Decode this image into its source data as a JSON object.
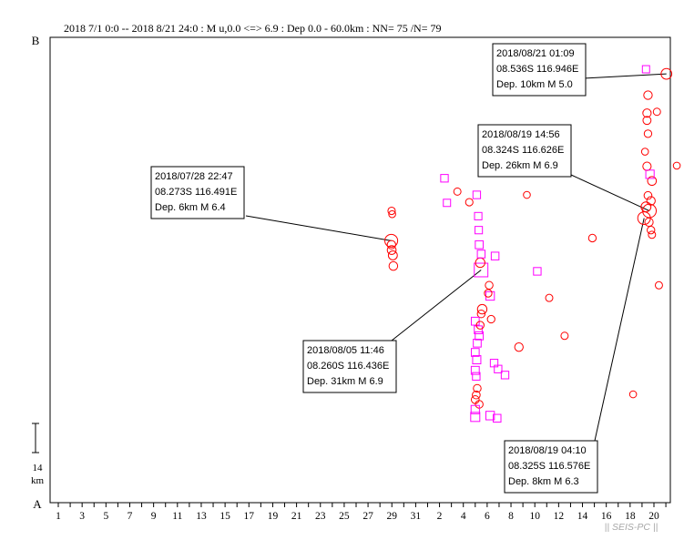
{
  "header": {
    "text": "2018 7/1 0:0 -- 2018 8/21 24:0 : M u,0.0 <=> 6.9 : Dep 0.0 - 60.0km : NN= 75 /N= 79"
  },
  "axis_top_label": "B",
  "axis_bottom_label": "A",
  "scale_bar": {
    "value": "14",
    "unit": "km"
  },
  "watermark": "|| SEIS-PC ||",
  "colors": {
    "circle": "#ff0000",
    "square": "#ff00ff",
    "axis": "#000000",
    "leader": "#000000"
  },
  "chart_data": {
    "type": "scatter",
    "x_axis": {
      "start": "2018-07-01",
      "end": "2018-08-21",
      "tick_labels": [
        "1",
        "3",
        "5",
        "7",
        "9",
        "11",
        "13",
        "15",
        "17",
        "19",
        "21",
        "23",
        "25",
        "27",
        "29",
        "31",
        "2",
        "4",
        "6",
        "8",
        "10",
        "12",
        "14",
        "16",
        "18",
        "20"
      ]
    },
    "y_axis": {
      "range_km": [
        0,
        70
      ],
      "top": "B",
      "bottom": "A"
    },
    "marker_legend": {
      "circle": "red",
      "square": "magenta"
    },
    "points": [
      {
        "date": "2018-07-28T22:47",
        "y": 39.4,
        "m": 6.4,
        "shape": "circle"
      },
      {
        "date": "2018-07-28T23:10",
        "y": 38.8,
        "m": 3.6,
        "shape": "circle"
      },
      {
        "date": "2018-07-28T23:40",
        "y": 38.0,
        "m": 3.8,
        "shape": "circle"
      },
      {
        "date": "2018-07-29T02:00",
        "y": 37.2,
        "m": 3.9,
        "shape": "circle"
      },
      {
        "date": "2018-07-29T03:00",
        "y": 35.6,
        "m": 3.7,
        "shape": "circle"
      },
      {
        "date": "2018-07-28T23:30",
        "y": 43.9,
        "m": 2.9,
        "shape": "circle"
      },
      {
        "date": "2018-07-29T00:40",
        "y": 43.4,
        "m": 2.6,
        "shape": "circle"
      },
      {
        "date": "2018-08-02T10:00",
        "y": 48.8,
        "m": 3.0,
        "shape": "square"
      },
      {
        "date": "2018-08-02T15:00",
        "y": 45.1,
        "m": 2.8,
        "shape": "square"
      },
      {
        "date": "2018-08-03T12:00",
        "y": 46.8,
        "m": 2.8,
        "shape": "circle"
      },
      {
        "date": "2018-08-04T12:00",
        "y": 45.2,
        "m": 2.9,
        "shape": "circle"
      },
      {
        "date": "2018-08-05T03:00",
        "y": 46.3,
        "m": 3.0,
        "shape": "square"
      },
      {
        "date": "2018-08-05T06:00",
        "y": 43.1,
        "m": 2.9,
        "shape": "square"
      },
      {
        "date": "2018-08-05T11:46",
        "y": 35.0,
        "m": 6.9,
        "shape": "square"
      },
      {
        "date": "2018-08-05T10:00",
        "y": 36.1,
        "m": 4.2,
        "shape": "circle"
      },
      {
        "date": "2018-08-05T08:00",
        "y": 38.8,
        "m": 3.2,
        "shape": "square"
      },
      {
        "date": "2018-08-05T07:00",
        "y": 41.0,
        "m": 2.9,
        "shape": "square"
      },
      {
        "date": "2018-08-05T12:00",
        "y": 37.4,
        "m": 3.1,
        "shape": "square"
      },
      {
        "date": "2018-08-06T16:00",
        "y": 37.1,
        "m": 3.1,
        "shape": "square"
      },
      {
        "date": "2018-08-06T06:00",
        "y": 31.1,
        "m": 3.6,
        "shape": "square"
      },
      {
        "date": "2018-08-06T04:00",
        "y": 32.7,
        "m": 3.1,
        "shape": "circle"
      },
      {
        "date": "2018-08-06T02:00",
        "y": 31.5,
        "m": 3.0,
        "shape": "circle"
      },
      {
        "date": "2018-08-05T14:00",
        "y": 29.1,
        "m": 4.2,
        "shape": "circle"
      },
      {
        "date": "2018-08-05T12:00",
        "y": 28.4,
        "m": 3.1,
        "shape": "circle"
      },
      {
        "date": "2018-08-06T08:00",
        "y": 27.6,
        "m": 3.0,
        "shape": "circle"
      },
      {
        "date": "2018-08-05T00:00",
        "y": 27.3,
        "m": 3.2,
        "shape": "square"
      },
      {
        "date": "2018-08-05T06:00",
        "y": 26.0,
        "m": 3.2,
        "shape": "square"
      },
      {
        "date": "2018-08-05T10:00",
        "y": 26.7,
        "m": 3.1,
        "shape": "circle"
      },
      {
        "date": "2018-08-05T08:00",
        "y": 25.1,
        "m": 3.3,
        "shape": "square"
      },
      {
        "date": "2018-08-05T04:00",
        "y": 24.0,
        "m": 3.2,
        "shape": "square"
      },
      {
        "date": "2018-08-05T00:00",
        "y": 22.6,
        "m": 3.2,
        "shape": "square"
      },
      {
        "date": "2018-08-05T03:00",
        "y": 21.5,
        "m": 3.4,
        "shape": "square"
      },
      {
        "date": "2018-08-05T00:00",
        "y": 19.9,
        "m": 3.3,
        "shape": "square"
      },
      {
        "date": "2018-08-05T02:00",
        "y": 19.0,
        "m": 3.0,
        "shape": "square"
      },
      {
        "date": "2018-08-05T04:00",
        "y": 17.2,
        "m": 3.1,
        "shape": "circle"
      },
      {
        "date": "2018-08-05T02:00",
        "y": 16.2,
        "m": 3.2,
        "shape": "circle"
      },
      {
        "date": "2018-08-05T00:00",
        "y": 15.5,
        "m": 3.2,
        "shape": "circle"
      },
      {
        "date": "2018-08-05T08:00",
        "y": 14.8,
        "m": 3.1,
        "shape": "circle"
      },
      {
        "date": "2018-08-05T00:00",
        "y": 14.0,
        "m": 3.5,
        "shape": "square"
      },
      {
        "date": "2018-08-05T00:00",
        "y": 12.9,
        "m": 4.0,
        "shape": "square"
      },
      {
        "date": "2018-08-06T06:00",
        "y": 13.1,
        "m": 3.6,
        "shape": "square"
      },
      {
        "date": "2018-08-06T20:00",
        "y": 12.7,
        "m": 3.1,
        "shape": "square"
      },
      {
        "date": "2018-08-06T14:00",
        "y": 21.0,
        "m": 3.0,
        "shape": "square"
      },
      {
        "date": "2018-08-06T22:00",
        "y": 20.1,
        "m": 3.0,
        "shape": "square"
      },
      {
        "date": "2018-08-07T12:00",
        "y": 19.2,
        "m": 3.0,
        "shape": "square"
      },
      {
        "date": "2018-08-08T16:00",
        "y": 23.4,
        "m": 3.6,
        "shape": "circle"
      },
      {
        "date": "2018-08-09T08:00",
        "y": 46.3,
        "m": 2.6,
        "shape": "circle"
      },
      {
        "date": "2018-08-10T05:00",
        "y": 34.8,
        "m": 3.0,
        "shape": "square"
      },
      {
        "date": "2018-08-11T05:00",
        "y": 30.8,
        "m": 2.8,
        "shape": "circle"
      },
      {
        "date": "2018-08-12T12:00",
        "y": 25.1,
        "m": 2.8,
        "shape": "circle"
      },
      {
        "date": "2018-08-14T20:00",
        "y": 39.8,
        "m": 3.0,
        "shape": "circle"
      },
      {
        "date": "2018-08-18T06:00",
        "y": 16.3,
        "m": 2.6,
        "shape": "circle"
      },
      {
        "date": "2018-08-19T04:10",
        "y": 42.8,
        "m": 6.3,
        "shape": "circle"
      },
      {
        "date": "2018-08-19T14:56",
        "y": 43.9,
        "m": 6.9,
        "shape": "circle"
      },
      {
        "date": "2018-08-19T08:00",
        "y": 44.5,
        "m": 4.5,
        "shape": "circle"
      },
      {
        "date": "2018-08-19T18:00",
        "y": 45.4,
        "m": 3.6,
        "shape": "circle"
      },
      {
        "date": "2018-08-19T12:00",
        "y": 46.2,
        "m": 3.2,
        "shape": "circle"
      },
      {
        "date": "2018-08-19T20:00",
        "y": 48.4,
        "m": 3.8,
        "shape": "circle"
      },
      {
        "date": "2018-08-19T10:00",
        "y": 50.6,
        "m": 3.5,
        "shape": "circle"
      },
      {
        "date": "2018-08-19T16:00",
        "y": 49.4,
        "m": 3.5,
        "shape": "square"
      },
      {
        "date": "2018-08-19T06:00",
        "y": 52.8,
        "m": 2.6,
        "shape": "circle"
      },
      {
        "date": "2018-08-19T12:00",
        "y": 55.5,
        "m": 3.0,
        "shape": "circle"
      },
      {
        "date": "2018-08-19T10:00",
        "y": 57.5,
        "m": 3.3,
        "shape": "circle"
      },
      {
        "date": "2018-08-19T10:00",
        "y": 58.6,
        "m": 3.5,
        "shape": "circle"
      },
      {
        "date": "2018-08-20T06:00",
        "y": 58.8,
        "m": 2.8,
        "shape": "circle"
      },
      {
        "date": "2018-08-19T12:00",
        "y": 61.3,
        "m": 3.6,
        "shape": "circle"
      },
      {
        "date": "2018-08-19T08:00",
        "y": 65.2,
        "m": 2.8,
        "shape": "square"
      },
      {
        "date": "2018-08-21T01:09",
        "y": 64.5,
        "m": 5.0,
        "shape": "circle"
      },
      {
        "date": "2018-08-19T14:00",
        "y": 42.2,
        "m": 3.5,
        "shape": "circle"
      },
      {
        "date": "2018-08-19T18:00",
        "y": 41.0,
        "m": 3.0,
        "shape": "circle"
      },
      {
        "date": "2018-08-19T20:00",
        "y": 40.3,
        "m": 2.8,
        "shape": "circle"
      },
      {
        "date": "2018-08-20T10:00",
        "y": 32.7,
        "m": 2.8,
        "shape": "circle"
      },
      {
        "date": "2018-08-21T22:00",
        "y": 50.7,
        "m": 2.6,
        "shape": "circle"
      }
    ],
    "annotations": [
      {
        "point_date": "2018-07-28T22:47",
        "point_y": 39.4,
        "lines": [
          "2018/07/28 22:47",
          "08.273S 116.491E",
          "Dep. 6km M 6.4"
        ]
      },
      {
        "point_date": "2018-08-05T11:46",
        "point_y": 35.0,
        "lines": [
          "2018/08/05 11:46",
          "08.260S 116.436E",
          "Dep. 31km M 6.9"
        ]
      },
      {
        "point_date": "2018-08-19T14:56",
        "point_y": 43.9,
        "lines": [
          "2018/08/19 14:56",
          "08.324S 116.626E",
          "Dep. 26km M 6.9"
        ]
      },
      {
        "point_date": "2018-08-19T04:10",
        "point_y": 42.8,
        "lines": [
          "2018/08/19 04:10",
          "08.325S 116.576E",
          "Dep. 8km M 6.3"
        ]
      },
      {
        "point_date": "2018-08-21T01:09",
        "point_y": 64.5,
        "lines": [
          "2018/08/21 01:09",
          "08.536S 116.946E",
          "Dep. 10km M 5.0"
        ]
      }
    ]
  }
}
